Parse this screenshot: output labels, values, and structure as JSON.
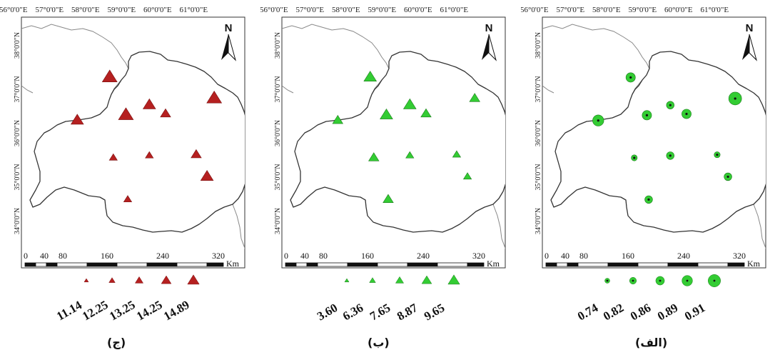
{
  "longitude_labels": [
    "56°0'0\"E",
    "57°0'0\"E",
    "58°0'0\"E",
    "59°0'0\"E",
    "60°0'0\"E",
    "61°0'0\"E"
  ],
  "latitude_labels": [
    "38°0'0\"N",
    "37°0'0\"N",
    "36°0'0\"N",
    "35°0'0\"N",
    "34°0'0\"N"
  ],
  "north_label": "N",
  "scale": {
    "ticks": [
      "0",
      "40",
      "80",
      "160",
      "240",
      "320"
    ],
    "unit": "Km"
  },
  "colors": {
    "red": "#b52020",
    "green": "#33cc33",
    "green_dark": "#1a7a1a",
    "outline": "#333333",
    "frame": "#333333"
  },
  "panels": [
    {
      "id": "jim",
      "caption": "(ج)",
      "marker": "triangle",
      "color_key": "red",
      "legend": [
        "11.14",
        "12.25",
        "13.25",
        "14.25",
        "14.89"
      ],
      "stations": [
        {
          "lon": 58.45,
          "lat": 37.18,
          "v": 4
        },
        {
          "lon": 61.35,
          "lat": 36.7,
          "v": 4
        },
        {
          "lon": 57.55,
          "lat": 36.2,
          "v": 3
        },
        {
          "lon": 58.9,
          "lat": 36.32,
          "v": 4
        },
        {
          "lon": 59.55,
          "lat": 36.55,
          "v": 3
        },
        {
          "lon": 60.0,
          "lat": 36.35,
          "v": 2
        },
        {
          "lon": 58.55,
          "lat": 35.35,
          "v": 1
        },
        {
          "lon": 59.55,
          "lat": 35.4,
          "v": 1
        },
        {
          "lon": 60.85,
          "lat": 35.42,
          "v": 2
        },
        {
          "lon": 61.15,
          "lat": 34.92,
          "v": 3
        },
        {
          "lon": 58.95,
          "lat": 34.4,
          "v": 1
        }
      ]
    },
    {
      "id": "be",
      "caption": "(ب)",
      "marker": "triangle",
      "color_key": "green",
      "legend": [
        "3.60",
        "6.36",
        "7.65",
        "8.87",
        "9.65"
      ],
      "stations": [
        {
          "lon": 58.45,
          "lat": 37.18,
          "v": 3
        },
        {
          "lon": 61.35,
          "lat": 36.7,
          "v": 2
        },
        {
          "lon": 57.55,
          "lat": 36.2,
          "v": 2
        },
        {
          "lon": 58.9,
          "lat": 36.32,
          "v": 3
        },
        {
          "lon": 59.55,
          "lat": 36.55,
          "v": 3
        },
        {
          "lon": 60.0,
          "lat": 36.35,
          "v": 2
        },
        {
          "lon": 58.55,
          "lat": 35.35,
          "v": 2
        },
        {
          "lon": 59.55,
          "lat": 35.4,
          "v": 1
        },
        {
          "lon": 60.85,
          "lat": 35.42,
          "v": 1
        },
        {
          "lon": 61.15,
          "lat": 34.92,
          "v": 1
        },
        {
          "lon": 58.95,
          "lat": 34.4,
          "v": 2
        }
      ]
    },
    {
      "id": "alef",
      "caption": "(الف)",
      "marker": "circle",
      "color_key": "green",
      "legend": [
        "0.74",
        "0.82",
        "0.86",
        "0.89",
        "0.91"
      ],
      "stations": [
        {
          "lon": 58.45,
          "lat": 37.18,
          "v": 3
        },
        {
          "lon": 61.35,
          "lat": 36.7,
          "v": 5
        },
        {
          "lon": 57.55,
          "lat": 36.2,
          "v": 4
        },
        {
          "lon": 58.9,
          "lat": 36.32,
          "v": 3
        },
        {
          "lon": 59.55,
          "lat": 36.55,
          "v": 2
        },
        {
          "lon": 60.0,
          "lat": 36.35,
          "v": 3
        },
        {
          "lon": 58.55,
          "lat": 35.35,
          "v": 1
        },
        {
          "lon": 59.55,
          "lat": 35.4,
          "v": 2
        },
        {
          "lon": 60.85,
          "lat": 35.42,
          "v": 1
        },
        {
          "lon": 61.15,
          "lat": 34.92,
          "v": 2
        },
        {
          "lon": 58.95,
          "lat": 34.4,
          "v": 2
        }
      ]
    }
  ]
}
